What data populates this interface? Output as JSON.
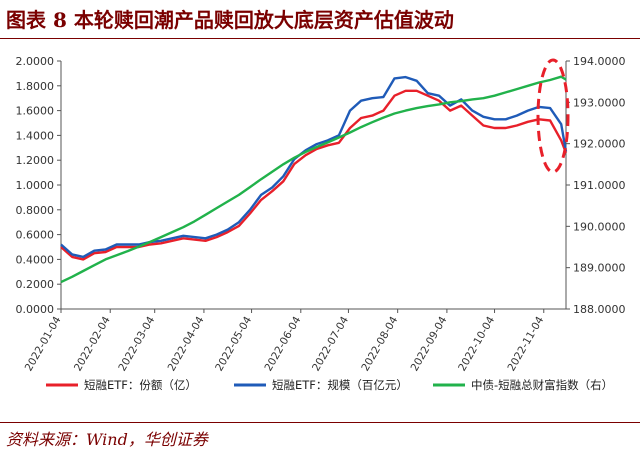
{
  "header": {
    "title": "图表 8 本轮赎回潮产品赎回放大底层资产估值波动"
  },
  "footer": {
    "source": "资料来源：Wind，华创证券"
  },
  "chart_data": {
    "type": "line",
    "x": [
      "2022-01-04",
      "2022-01-11",
      "2022-01-18",
      "2022-01-25",
      "2022-02-01",
      "2022-02-08",
      "2022-02-15",
      "2022-02-22",
      "2022-03-01",
      "2022-03-08",
      "2022-03-15",
      "2022-03-22",
      "2022-03-29",
      "2022-04-05",
      "2022-04-12",
      "2022-04-19",
      "2022-04-26",
      "2022-05-03",
      "2022-05-10",
      "2022-05-17",
      "2022-05-24",
      "2022-05-31",
      "2022-06-07",
      "2022-06-14",
      "2022-06-21",
      "2022-06-28",
      "2022-07-05",
      "2022-07-12",
      "2022-07-19",
      "2022-07-26",
      "2022-08-02",
      "2022-08-09",
      "2022-08-16",
      "2022-08-23",
      "2022-08-30",
      "2022-09-06",
      "2022-09-13",
      "2022-09-20",
      "2022-09-27",
      "2022-10-04",
      "2022-10-11",
      "2022-10-18",
      "2022-10-25",
      "2022-11-01",
      "2022-11-08",
      "2022-11-15",
      "2022-11-18"
    ],
    "xticks": [
      "2022-01-04",
      "2022-02-04",
      "2022-03-04",
      "2022-04-04",
      "2022-05-04",
      "2022-06-04",
      "2022-07-04",
      "2022-08-04",
      "2022-09-04",
      "2022-10-04",
      "2022-11-04"
    ],
    "yticks_left": [
      "0.0000",
      "0.2000",
      "0.4000",
      "0.6000",
      "0.8000",
      "1.0000",
      "1.2000",
      "1.4000",
      "1.6000",
      "1.8000",
      "2.0000"
    ],
    "yticks_right": [
      "188.0000",
      "189.0000",
      "190.0000",
      "191.0000",
      "192.0000",
      "193.0000",
      "194.0000"
    ],
    "ylim_left": [
      0,
      2.0
    ],
    "ylim_right": [
      188.0,
      194.0
    ],
    "series": [
      {
        "name": "短融ETF：份额（亿）",
        "axis": "left",
        "color": "#e8202a",
        "values": [
          0.5,
          0.42,
          0.4,
          0.45,
          0.46,
          0.5,
          0.5,
          0.5,
          0.52,
          0.53,
          0.55,
          0.57,
          0.56,
          0.55,
          0.58,
          0.62,
          0.67,
          0.77,
          0.88,
          0.95,
          1.03,
          1.17,
          1.24,
          1.29,
          1.32,
          1.34,
          1.46,
          1.54,
          1.56,
          1.6,
          1.72,
          1.76,
          1.76,
          1.72,
          1.68,
          1.6,
          1.64,
          1.56,
          1.48,
          1.46,
          1.46,
          1.48,
          1.51,
          1.53,
          1.52,
          1.36,
          1.26
        ]
      },
      {
        "name": "短融ETF：规模（百亿元）",
        "axis": "left",
        "color": "#1f5bb8",
        "values": [
          0.52,
          0.44,
          0.42,
          0.47,
          0.48,
          0.52,
          0.52,
          0.52,
          0.54,
          0.55,
          0.57,
          0.59,
          0.58,
          0.57,
          0.6,
          0.64,
          0.7,
          0.8,
          0.92,
          0.98,
          1.07,
          1.21,
          1.28,
          1.33,
          1.36,
          1.4,
          1.6,
          1.68,
          1.7,
          1.71,
          1.86,
          1.87,
          1.84,
          1.74,
          1.72,
          1.64,
          1.69,
          1.6,
          1.55,
          1.53,
          1.53,
          1.56,
          1.6,
          1.63,
          1.62,
          1.49,
          1.27
        ]
      },
      {
        "name": "中债-短融总财富指数（右）",
        "axis": "right",
        "color": "#21b24b",
        "values": [
          188.65,
          188.78,
          188.92,
          189.06,
          189.2,
          189.3,
          189.4,
          189.51,
          189.62,
          189.74,
          189.86,
          189.98,
          190.12,
          190.28,
          190.44,
          190.6,
          190.76,
          190.95,
          191.14,
          191.32,
          191.5,
          191.66,
          191.8,
          191.92,
          192.03,
          192.15,
          192.27,
          192.4,
          192.52,
          192.63,
          192.73,
          192.8,
          192.86,
          192.91,
          192.95,
          193.0,
          193.03,
          193.07,
          193.1,
          193.16,
          193.24,
          193.32,
          193.4,
          193.48,
          193.54,
          193.62,
          193.55
        ]
      }
    ],
    "legend": {
      "position": "bottom"
    },
    "annotations": [
      {
        "type": "dashed-ellipse",
        "color": "#e8202a",
        "note": ""
      }
    ]
  }
}
